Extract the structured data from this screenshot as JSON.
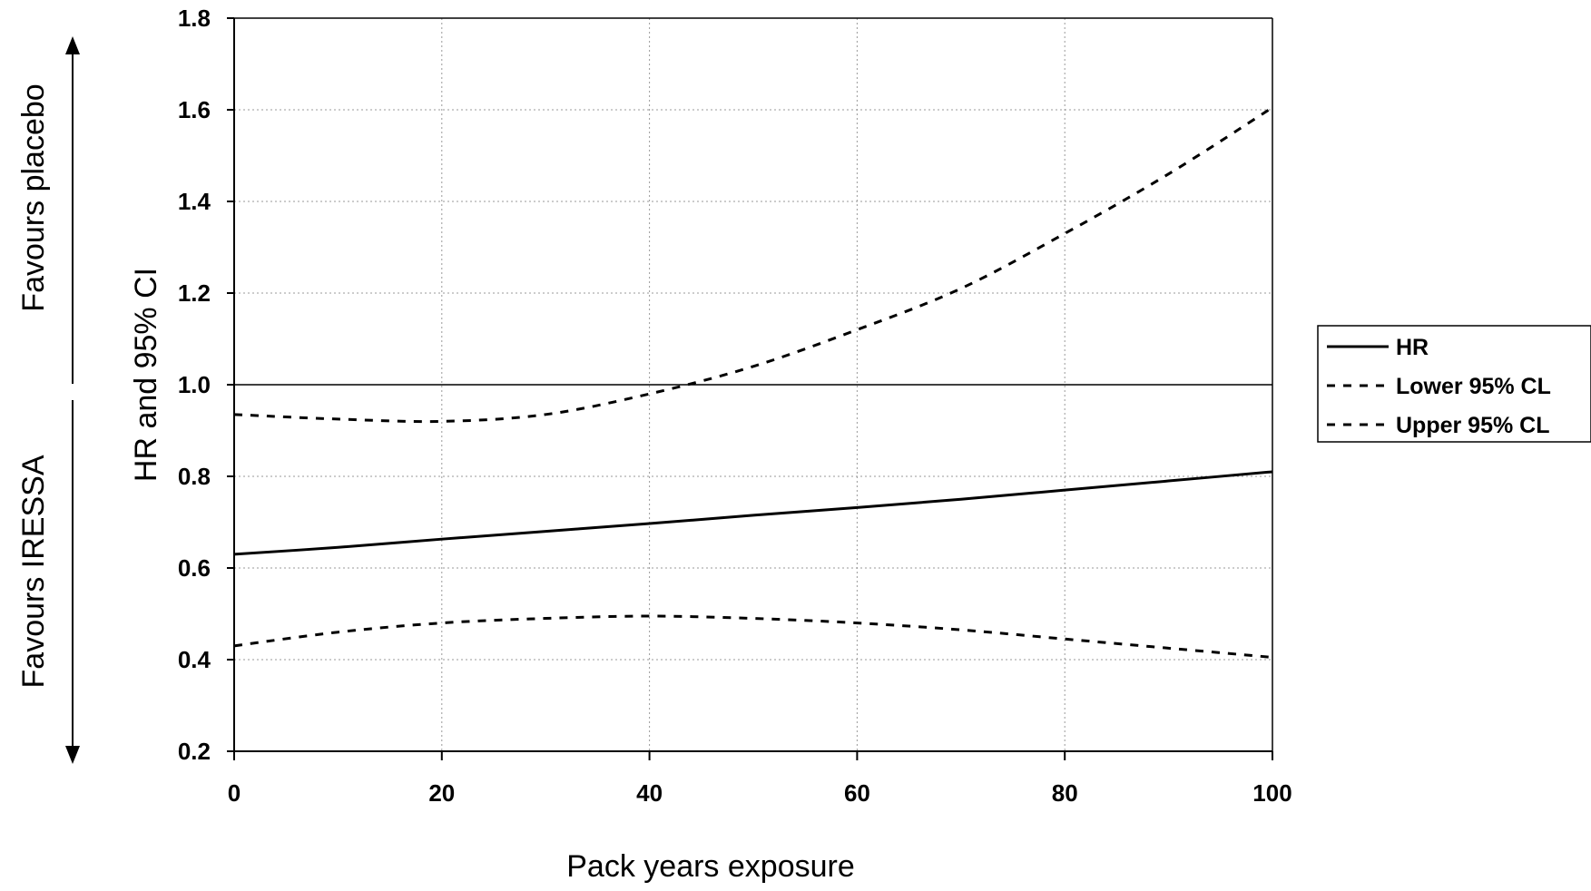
{
  "chart_data": {
    "type": "line",
    "title": "",
    "xlabel": "Pack years exposure",
    "ylabel": "HR and 95% CI",
    "xlim": [
      0,
      100
    ],
    "ylim": [
      0.2,
      1.8
    ],
    "x_ticks": [
      0,
      20,
      40,
      60,
      80,
      100
    ],
    "y_ticks": [
      0.2,
      0.4,
      0.6,
      0.8,
      1.0,
      1.2,
      1.4,
      1.6,
      1.8
    ],
    "y_tick_labels": [
      "0.2",
      "0.4",
      "0.6",
      "0.8",
      "1.0",
      "1.2",
      "1.4",
      "1.6",
      "1.8"
    ],
    "grid": true,
    "reference_line": 1.0,
    "legend_position": "right",
    "side_labels": {
      "upper": "Favours placebo",
      "lower": "Favours IRESSA"
    },
    "series": [
      {
        "name": "HR",
        "style": "solid",
        "x": [
          0,
          10,
          20,
          30,
          40,
          50,
          60,
          70,
          80,
          90,
          100
        ],
        "y": [
          0.63,
          0.645,
          0.663,
          0.68,
          0.697,
          0.715,
          0.732,
          0.75,
          0.77,
          0.79,
          0.81
        ]
      },
      {
        "name": "Lower 95% CL",
        "style": "dashed",
        "x": [
          0,
          10,
          20,
          30,
          40,
          50,
          60,
          70,
          80,
          90,
          100
        ],
        "y": [
          0.43,
          0.46,
          0.48,
          0.49,
          0.495,
          0.49,
          0.48,
          0.465,
          0.445,
          0.425,
          0.405
        ]
      },
      {
        "name": "Upper 95% CL",
        "style": "dashed",
        "x": [
          0,
          10,
          20,
          30,
          40,
          50,
          60,
          70,
          80,
          90,
          100
        ],
        "y": [
          0.935,
          0.925,
          0.92,
          0.935,
          0.98,
          1.04,
          1.12,
          1.21,
          1.33,
          1.46,
          1.605
        ]
      }
    ]
  },
  "colors": {
    "line": "#000000",
    "grid": "#9a9a9a",
    "background": "#ffffff"
  }
}
